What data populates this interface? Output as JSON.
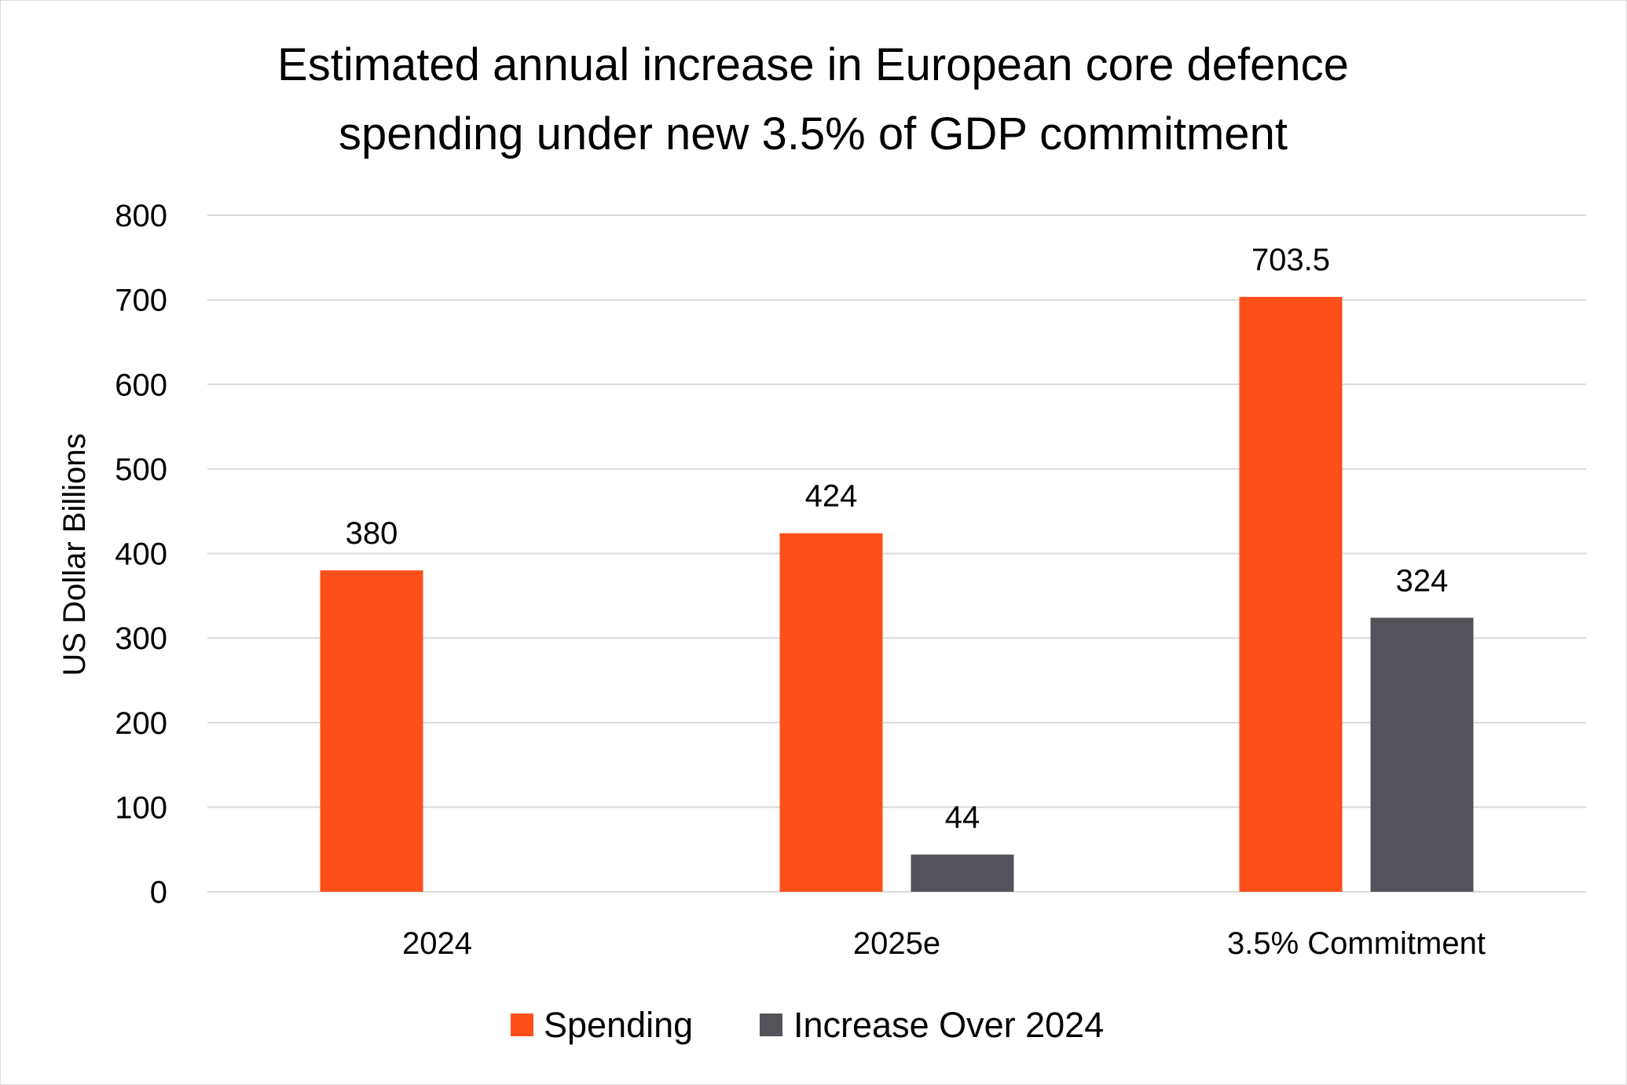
{
  "chart_data": {
    "type": "bar",
    "title_lines": [
      "Estimated annual increase in European core defence",
      "spending under new 3.5% of GDP commitment"
    ],
    "xlabel": "",
    "ylabel": "US Dollar Billions",
    "categories": [
      "2024",
      "2025e",
      "3.5% Commitment"
    ],
    "series": [
      {
        "name": "Spending",
        "color": "#fc4f1a",
        "values": [
          380,
          424,
          703.5
        ],
        "labels": [
          "380",
          "424",
          "703.5"
        ]
      },
      {
        "name": "Increase Over 2024",
        "color": "#545359",
        "values": [
          null,
          44,
          324
        ],
        "labels": [
          "",
          "44",
          "324"
        ]
      }
    ],
    "ylim": [
      0,
      800
    ],
    "yticks": [
      0,
      100,
      200,
      300,
      400,
      500,
      600,
      700,
      800
    ],
    "grid": true,
    "legend_position": "bottom"
  }
}
